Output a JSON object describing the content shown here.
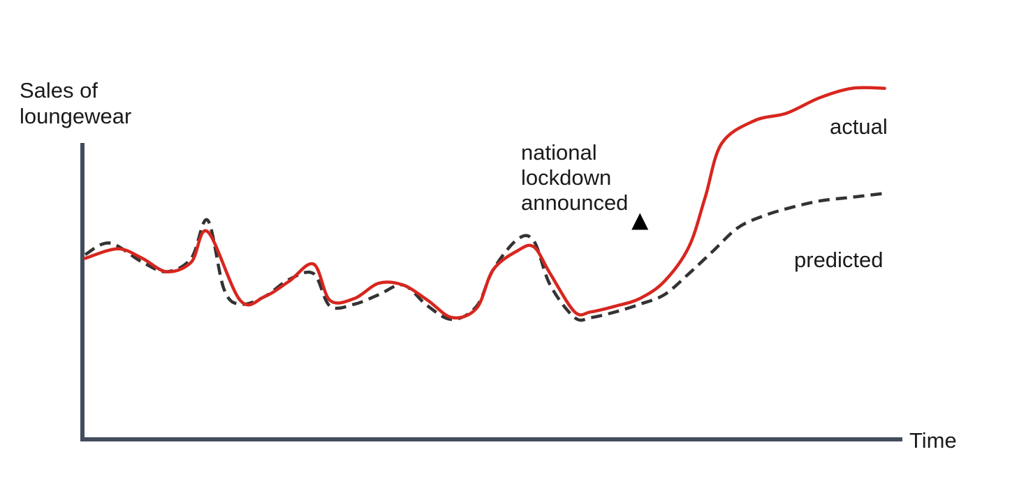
{
  "chart_data": {
    "type": "line",
    "ylabel": [
      "Sales of",
      "loungewear"
    ],
    "xlabel": "Time",
    "grid": false,
    "ticks": "none",
    "x_range": [
      0,
      100
    ],
    "y_range": [
      0,
      100
    ],
    "annotation": {
      "text": [
        "national",
        "lockdown",
        "announced"
      ],
      "x": 68,
      "points_at_y": 56
    },
    "series": [
      {
        "name": "actual",
        "color": "#d7261e",
        "style": "solid",
        "label_position": "top-right",
        "x": [
          0,
          4,
          7,
          10,
          13,
          15,
          19,
          22,
          25,
          28,
          30,
          33,
          36,
          39,
          42,
          45,
          48,
          50,
          53,
          55,
          57,
          60,
          62,
          65,
          68,
          71,
          74,
          76,
          78,
          82,
          86,
          90,
          94,
          98
        ],
        "y": [
          47,
          49.5,
          47,
          43.5,
          46,
          54,
          36,
          37,
          41,
          45.5,
          36,
          36.5,
          40.5,
          40,
          36,
          31.5,
          34,
          44,
          49,
          50,
          43,
          33,
          33,
          34.5,
          36.5,
          41,
          50,
          63,
          77,
          83,
          85,
          89,
          91.5,
          91.5
        ]
      },
      {
        "name": "predicted",
        "color": "#333333",
        "style": "dashed",
        "label_position": "right",
        "x": [
          0,
          3,
          7,
          10,
          13,
          15,
          17,
          19,
          22,
          25,
          28,
          30,
          33,
          36,
          39,
          42,
          45,
          48,
          50,
          53,
          55,
          57,
          60,
          62,
          65,
          68,
          71,
          74,
          77,
          80,
          83,
          86,
          90,
          94,
          98
        ],
        "y": [
          48,
          51,
          46,
          43.5,
          47,
          57,
          39,
          35,
          37,
          41.5,
          43,
          34.5,
          35,
          37.5,
          40,
          34.5,
          31,
          34.5,
          44,
          52,
          51.5,
          40,
          31.5,
          31.5,
          33,
          35,
          37.5,
          43,
          49,
          55,
          58,
          60,
          62,
          63,
          64
        ]
      }
    ]
  }
}
